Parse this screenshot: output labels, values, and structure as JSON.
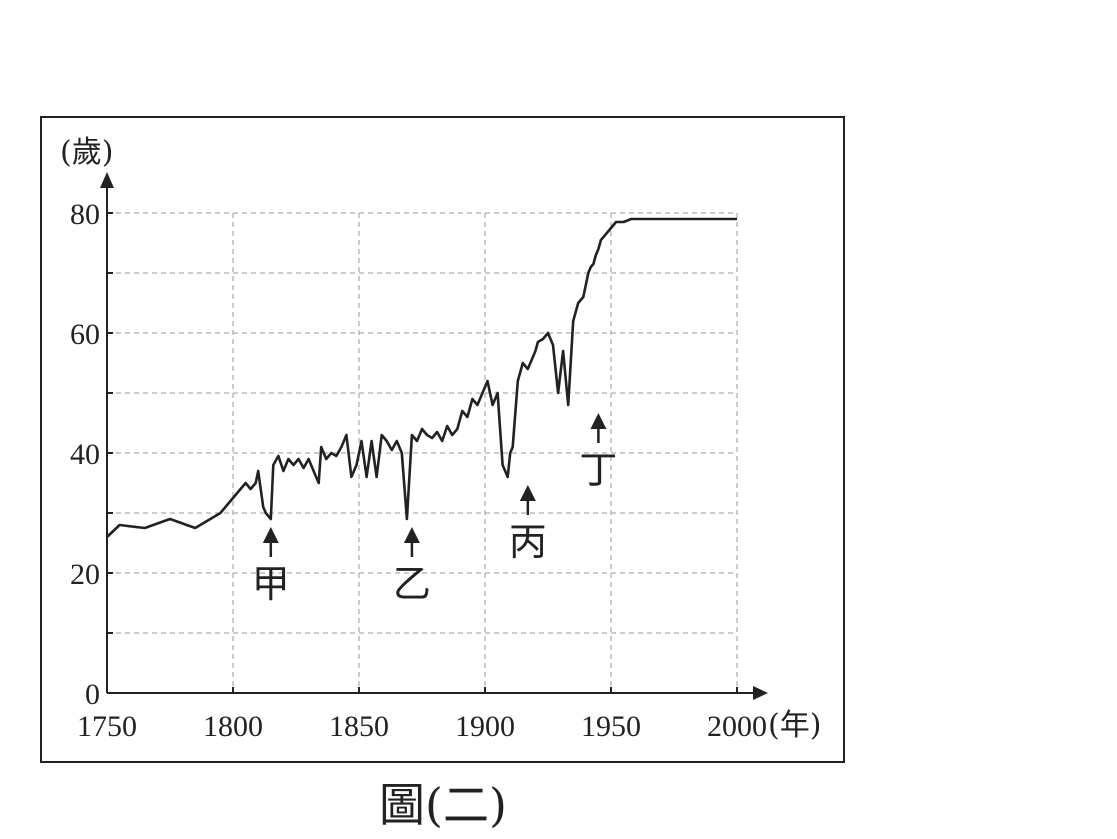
{
  "chart_data": {
    "type": "line",
    "ylabel": "(歲)",
    "xlabel": "(年)",
    "xlim": [
      1750,
      2000
    ],
    "ylim": [
      0,
      80
    ],
    "xticks": [
      "1750",
      "1800",
      "1850",
      "1900",
      "1950",
      "2000"
    ],
    "yticks": [
      "0",
      "20",
      "40",
      "60",
      "80"
    ],
    "grid": true,
    "caption": "圖(二)",
    "annotations": [
      {
        "label": "甲",
        "x": 1815,
        "y": 29
      },
      {
        "label": "乙",
        "x": 1871,
        "y": 29
      },
      {
        "label": "丙",
        "x": 1917,
        "y": 36
      },
      {
        "label": "丁",
        "x": 1945,
        "y": 48
      }
    ],
    "series": [
      {
        "x": [
          1750,
          1755,
          1765,
          1775,
          1785,
          1795,
          1800,
          1805,
          1807,
          1809,
          1810,
          1812,
          1813,
          1815,
          1816,
          1818,
          1820,
          1822,
          1824,
          1826,
          1828,
          1830,
          1832,
          1834,
          1835,
          1837,
          1839,
          1841,
          1843,
          1845,
          1847,
          1849,
          1851,
          1853,
          1855,
          1857,
          1859,
          1861,
          1863,
          1865,
          1867,
          1869,
          1871,
          1873,
          1875,
          1877,
          1879,
          1881,
          1883,
          1885,
          1887,
          1889,
          1891,
          1893,
          1895,
          1897,
          1899,
          1901,
          1903,
          1905,
          1907,
          1909,
          1910,
          1911,
          1913,
          1915,
          1917,
          1919,
          1920,
          1921,
          1923,
          1925,
          1927,
          1929,
          1931,
          1933,
          1935,
          1937,
          1939,
          1940,
          1941,
          1942,
          1943,
          1944,
          1945,
          1946,
          1948,
          1950,
          1952,
          1955,
          1958,
          1961,
          1965,
          1970,
          1975,
          1980,
          1985,
          1990,
          1995,
          1997,
          2000
        ],
        "values": [
          26,
          28,
          27.5,
          29,
          27.5,
          30,
          32.5,
          35,
          34,
          35,
          37,
          31,
          30,
          29,
          38,
          39.5,
          37,
          39,
          38,
          39,
          37.5,
          39,
          37,
          35,
          41,
          39,
          40,
          39.5,
          41,
          43,
          36,
          38,
          42,
          36,
          42,
          36,
          43,
          42,
          40.5,
          42,
          40,
          29,
          43,
          42,
          44,
          43,
          42.5,
          43.5,
          42,
          44.5,
          43,
          44,
          47,
          46,
          49,
          48,
          50,
          52,
          48,
          50,
          38,
          36,
          40,
          41,
          52,
          55,
          54,
          56,
          57,
          58.5,
          59,
          60,
          58,
          50,
          57,
          48,
          62,
          65,
          66,
          68,
          70,
          71,
          71.5,
          73,
          74,
          75.5,
          76.5,
          77.5,
          78.5,
          78.5,
          79,
          79,
          79,
          79,
          79,
          79,
          79,
          79,
          79,
          79,
          79
        ]
      }
    ]
  }
}
